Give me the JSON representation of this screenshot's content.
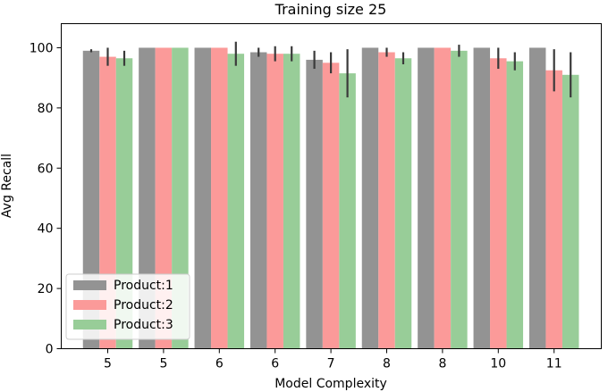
{
  "chart_data": {
    "type": "bar",
    "title": "Training size 25",
    "xlabel": "Model Complexity",
    "ylabel": "Avg Recall",
    "ylim": [
      0,
      108
    ],
    "yticks": [
      0,
      20,
      40,
      60,
      80,
      100
    ],
    "categories": [
      "5",
      "5",
      "6",
      "6",
      "7",
      "8",
      "8",
      "10",
      "11"
    ],
    "grid": false,
    "legend_position": "lower-left",
    "series": [
      {
        "name": "Product:1",
        "color": "#939393",
        "values": [
          99,
          100,
          100,
          98.5,
          96,
          100,
          100,
          100,
          100
        ],
        "errors": [
          0.5,
          0,
          0,
          1.5,
          3,
          0,
          0,
          0,
          0
        ]
      },
      {
        "name": "Product:2",
        "color": "#fb9a99",
        "values": [
          97,
          100,
          100,
          98,
          95,
          98.5,
          100,
          96.5,
          92.5
        ],
        "errors": [
          3,
          0,
          0,
          2.5,
          3.5,
          1.5,
          0,
          3.5,
          7
        ]
      },
      {
        "name": "Product:3",
        "color": "#98cd98",
        "values": [
          96.5,
          100,
          98,
          98,
          91.5,
          96.5,
          99,
          95.5,
          91
        ],
        "errors": [
          2.5,
          0,
          4,
          2.5,
          8,
          2,
          2,
          3,
          7.5
        ]
      }
    ]
  }
}
